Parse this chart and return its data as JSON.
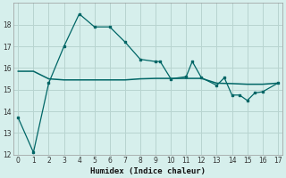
{
  "xlabel": "Humidex (Indice chaleur)",
  "background_color": "#d6efec",
  "line_color": "#006666",
  "grid_color": "#b8d4d0",
  "x_main": [
    0,
    1,
    2,
    3,
    4,
    5,
    6,
    7,
    8,
    9,
    9.3,
    10,
    11,
    11.4,
    12,
    13,
    13.5,
    14,
    14.5,
    15,
    15.5,
    16,
    17
  ],
  "y_main": [
    13.7,
    12.1,
    15.3,
    17.0,
    18.5,
    17.9,
    17.9,
    17.2,
    16.4,
    16.3,
    16.3,
    15.5,
    15.6,
    16.3,
    15.55,
    15.2,
    15.55,
    14.75,
    14.75,
    14.5,
    14.85,
    14.9,
    15.3
  ],
  "x_smooth": [
    0,
    1,
    2,
    3,
    4,
    5,
    6,
    7,
    8,
    9,
    10,
    11,
    12,
    13,
    14,
    15,
    16,
    17
  ],
  "y_smooth": [
    15.85,
    15.85,
    15.5,
    15.45,
    15.45,
    15.45,
    15.45,
    15.45,
    15.5,
    15.52,
    15.52,
    15.52,
    15.52,
    15.3,
    15.28,
    15.25,
    15.25,
    15.3
  ],
  "ylim": [
    12,
    19
  ],
  "xlim": [
    -0.3,
    17.3
  ],
  "yticks": [
    12,
    13,
    14,
    15,
    16,
    17,
    18
  ],
  "xticks": [
    0,
    1,
    2,
    3,
    4,
    5,
    6,
    7,
    8,
    9,
    10,
    11,
    12,
    13,
    14,
    15,
    16,
    17
  ]
}
